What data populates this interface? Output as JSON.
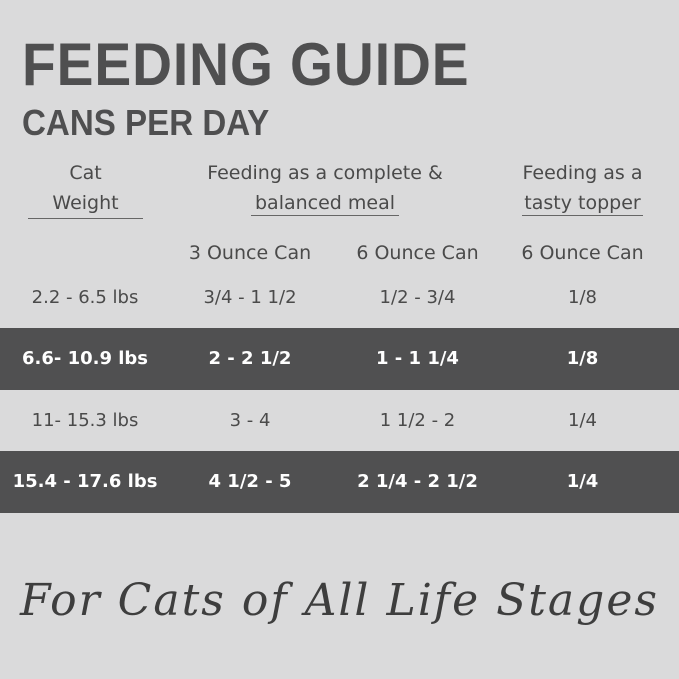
{
  "title": "FEEDING GUIDE",
  "subtitle": "CANS PER DAY",
  "headers": {
    "weight": [
      "Cat",
      "Weight"
    ],
    "complete": [
      "Feeding as a complete &",
      "balanced meal"
    ],
    "topper": [
      "Feeding as a",
      "tasty topper"
    ],
    "sub": [
      "3 Ounce Can",
      "6 Ounce Can",
      "6 Ounce Can"
    ]
  },
  "rows": [
    [
      "2.2 - 6.5 lbs",
      "3/4 - 1 1/2",
      "1/2 - 3/4",
      "1/8"
    ],
    [
      "6.6- 10.9 lbs",
      "2 - 2 1/2",
      "1 - 1 1/4",
      "1/8"
    ],
    [
      "11- 15.3 lbs",
      "3 - 4",
      "1 1/2 - 2",
      "1/4"
    ],
    [
      "15.4 - 17.6 lbs",
      "4 1/2 - 5",
      "2 1/4 - 2 1/2",
      "1/4"
    ]
  ],
  "footer": "For Cats of All Life Stages"
}
